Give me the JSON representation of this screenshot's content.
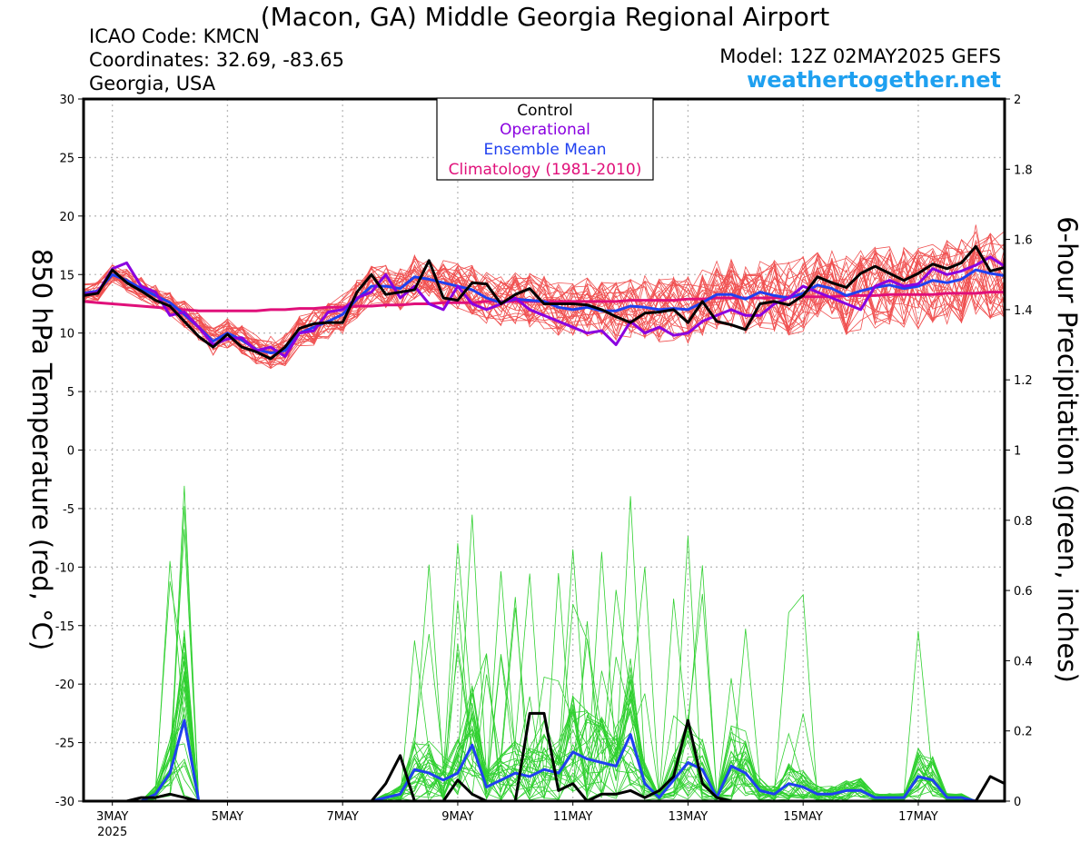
{
  "header": {
    "title": "(Macon, GA) Middle Georgia Regional Airport",
    "icao": "ICAO Code: KMCN",
    "coordinates": "Coordinates: 32.69, -83.65",
    "region": "Georgia, USA",
    "model": "Model: 12Z 02MAY2025 GEFS",
    "website": "weathertogether.net"
  },
  "colors": {
    "temp_members": "#f05050",
    "precip_members": "#30d030",
    "control": "#000000",
    "operational": "#8a00e0",
    "ensemble_mean": "#2040f0",
    "climatology": "#e0107a",
    "website": "#1ea0f0"
  },
  "chart_data": {
    "type": "line",
    "title": "(Macon, GA) Middle Georgia Regional Airport",
    "ylabel": "850 hPa Temperature (red, °C)",
    "y2label": "6-hour Precipitation (green, inches)",
    "ylim": [
      -30,
      30
    ],
    "y2lim": [
      0,
      2
    ],
    "y_ticks": [
      30,
      25,
      20,
      15,
      10,
      5,
      0,
      -5,
      -10,
      -15,
      -20,
      -25,
      -30
    ],
    "y2_ticks": [
      "2",
      "1.8",
      "1.6",
      "1.4",
      "1.2",
      "1",
      "0.8",
      "0.6",
      "0.4",
      "0.2",
      "0"
    ],
    "x_ticks": [
      {
        "label": "3MAY",
        "sub": "2025",
        "day": 3.0
      },
      {
        "label": "5MAY",
        "sub": "",
        "day": 5.0
      },
      {
        "label": "7MAY",
        "sub": "",
        "day": 7.0
      },
      {
        "label": "9MAY",
        "sub": "",
        "day": 9.0
      },
      {
        "label": "11MAY",
        "sub": "",
        "day": 11.0
      },
      {
        "label": "13MAY",
        "sub": "",
        "day": 13.0
      },
      {
        "label": "15MAY",
        "sub": "",
        "day": 15.0
      },
      {
        "label": "17MAY",
        "sub": "",
        "day": 17.0
      }
    ],
    "xlim_days": [
      2.5,
      18.5
    ],
    "grid": true,
    "legend_position": "top-center",
    "legend": [
      "Control",
      "Operational",
      "Ensemble Mean",
      "Climatology (1981-2010)"
    ],
    "x_days": [
      2.5,
      2.75,
      3.0,
      3.25,
      3.5,
      3.75,
      4.0,
      4.25,
      4.5,
      4.75,
      5.0,
      5.25,
      5.5,
      5.75,
      6.0,
      6.25,
      6.5,
      6.75,
      7.0,
      7.25,
      7.5,
      7.75,
      8.0,
      8.25,
      8.5,
      8.75,
      9.0,
      9.25,
      9.5,
      9.75,
      10.0,
      10.25,
      10.5,
      10.75,
      11.0,
      11.25,
      11.5,
      11.75,
      12.0,
      12.25,
      12.5,
      12.75,
      13.0,
      13.25,
      13.5,
      13.75,
      14.0,
      14.25,
      14.5,
      14.75,
      15.0,
      15.25,
      15.5,
      15.75,
      16.0,
      16.25,
      16.5,
      16.75,
      17.0,
      17.25,
      17.5,
      17.75,
      18.0,
      18.25,
      18.5
    ],
    "series": [
      {
        "name": "Control",
        "axis": "temperature",
        "values": [
          13.2,
          13.4,
          15.4,
          14.3,
          13.6,
          12.8,
          12.3,
          11.0,
          9.7,
          8.8,
          9.9,
          8.8,
          8.4,
          7.8,
          8.8,
          10.4,
          10.8,
          10.9,
          10.9,
          13.5,
          15.0,
          13.3,
          13.5,
          13.7,
          16.2,
          13.0,
          12.8,
          14.3,
          14.2,
          12.5,
          13.3,
          13.8,
          12.5,
          12.5,
          12.5,
          12.4,
          12.0,
          11.4,
          10.9,
          11.7,
          11.8,
          12.0,
          10.9,
          12.7,
          11.0,
          10.7,
          10.3,
          12.5,
          12.7,
          12.4,
          13.2,
          14.8,
          14.3,
          13.9,
          15.1,
          15.7,
          15.1,
          14.5,
          15.1,
          15.9,
          15.5,
          16.0,
          17.4,
          15.3,
          15.6
        ]
      },
      {
        "name": "Operational",
        "axis": "temperature",
        "values": [
          13.3,
          13.5,
          15.5,
          16.0,
          14.0,
          13.5,
          11.5,
          11.8,
          10.5,
          9.0,
          9.5,
          9.6,
          8.5,
          8.8,
          8.0,
          10.0,
          10.2,
          11.8,
          12.0,
          13.0,
          13.5,
          15.0,
          13.0,
          14.0,
          12.5,
          12.0,
          14.0,
          12.5,
          12.0,
          12.5,
          13.0,
          12.0,
          11.5,
          11.0,
          10.5,
          10.0,
          10.2,
          9.0,
          11.0,
          10.0,
          10.5,
          9.8,
          10.0,
          11.0,
          11.5,
          12.0,
          11.5,
          11.5,
          12.5,
          13.0,
          14.0,
          13.5,
          13.0,
          12.5,
          12.0,
          14.0,
          14.5,
          14.0,
          14.2,
          15.5,
          15.0,
          15.3,
          15.8,
          16.5,
          15.7
        ]
      },
      {
        "name": "Ensemble Mean",
        "axis": "temperature",
        "values": [
          13.4,
          13.6,
          15.0,
          14.5,
          13.8,
          13.2,
          12.6,
          11.6,
          10.5,
          9.3,
          10.0,
          9.4,
          8.6,
          8.3,
          8.5,
          10.0,
          10.5,
          11.0,
          11.6,
          12.9,
          14.0,
          14.0,
          13.8,
          14.8,
          14.6,
          14.3,
          14.0,
          13.7,
          13.0,
          12.6,
          12.9,
          12.8,
          12.7,
          12.2,
          12.0,
          12.2,
          11.9,
          11.9,
          12.3,
          12.2,
          12.0,
          12.1,
          12.0,
          12.6,
          13.3,
          13.3,
          12.9,
          13.5,
          13.2,
          13.0,
          13.4,
          14.1,
          13.8,
          13.2,
          13.6,
          13.9,
          14.1,
          13.8,
          14.0,
          14.5,
          14.3,
          14.6,
          15.4,
          15.1,
          14.9
        ]
      },
      {
        "name": "Climatology (1981-2010)",
        "axis": "temperature",
        "values": [
          12.7,
          12.6,
          12.5,
          12.4,
          12.3,
          12.2,
          12.1,
          12.0,
          11.9,
          11.9,
          11.9,
          11.9,
          11.9,
          12.0,
          12.0,
          12.1,
          12.1,
          12.2,
          12.2,
          12.3,
          12.3,
          12.4,
          12.4,
          12.5,
          12.5,
          12.6,
          12.6,
          12.6,
          12.7,
          12.7,
          12.7,
          12.7,
          12.7,
          12.7,
          12.7,
          12.7,
          12.7,
          12.7,
          12.8,
          12.8,
          12.8,
          12.8,
          12.9,
          12.9,
          13.0,
          13.0,
          13.0,
          13.0,
          13.0,
          13.1,
          13.1,
          13.1,
          13.1,
          13.2,
          13.2,
          13.2,
          13.3,
          13.3,
          13.3,
          13.3,
          13.4,
          13.4,
          13.4,
          13.5,
          13.5
        ]
      },
      {
        "name": "Control",
        "axis": "precipitation",
        "values": [
          0,
          0,
          0,
          0,
          0.01,
          0.01,
          0.02,
          0.01,
          0,
          0,
          0,
          0,
          0,
          0,
          0,
          0,
          0,
          0,
          0,
          0,
          0,
          0.05,
          0.13,
          0,
          0,
          0,
          0.06,
          0.02,
          0,
          0,
          0,
          0.25,
          0.25,
          0.03,
          0.05,
          0,
          0.02,
          0.02,
          0.03,
          0.01,
          0.03,
          0.07,
          0.23,
          0.05,
          0.01,
          0,
          0,
          0,
          0,
          0,
          0,
          0,
          0,
          0,
          0,
          0,
          0,
          0,
          0,
          0,
          0,
          0,
          0,
          0.07,
          0.05
        ]
      },
      {
        "name": "Ensemble Mean",
        "axis": "precipitation",
        "values": [
          0,
          0,
          0,
          0,
          0,
          0.02,
          0.08,
          0.23,
          0,
          0,
          0,
          0,
          0,
          0,
          0,
          0,
          0,
          0,
          0,
          0,
          0,
          0.01,
          0.02,
          0.09,
          0.08,
          0.06,
          0.08,
          0.16,
          0.04,
          0.06,
          0.08,
          0.07,
          0.09,
          0.08,
          0.14,
          0.12,
          0.11,
          0.1,
          0.19,
          0.05,
          0.01,
          0.06,
          0.11,
          0.09,
          0.01,
          0.1,
          0.08,
          0.03,
          0.02,
          0.05,
          0.04,
          0.02,
          0.02,
          0.03,
          0.03,
          0.01,
          0.01,
          0.01,
          0.07,
          0.06,
          0.01,
          0.01,
          0,
          0,
          0
        ]
      }
    ]
  }
}
